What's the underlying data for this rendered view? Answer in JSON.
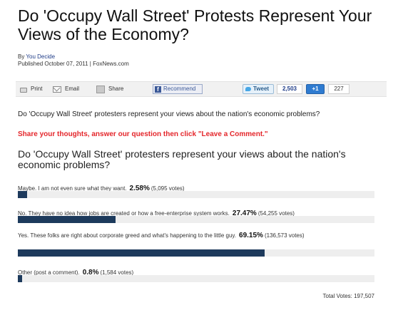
{
  "article": {
    "title": "Do 'Occupy Wall Street' Protests Represent Your Views of the Economy?",
    "byline_prefix": "By ",
    "author": "You Decide",
    "published": "Published October 07, 2011 | FoxNews.com"
  },
  "toolbar": {
    "print_label": "Print",
    "email_label": "Email",
    "share_label": "Share",
    "recommend_label": "Recommend",
    "tweet_label": "Tweet",
    "tweet_count": "2,503",
    "gplus_label": "+1",
    "gplus_count": "227"
  },
  "intro_question": "Do 'Occupy Wall Street' protesters represent your views about the nation's economic problems?",
  "call_to_action": "Share your thoughts, answer our question then click \"Leave a Comment.\"",
  "poll": {
    "question": "Do 'Occupy Wall Street' protesters represent your views about the nation's economic problems?",
    "options": [
      {
        "text": "Maybe. I am not even sure what they want.",
        "percent": "2.58%",
        "votes": "(5,095 votes)",
        "fraction": 0.0258
      },
      {
        "text": "No. They have no idea how jobs are created or how a free-enterprise system works.",
        "percent": "27.47%",
        "votes": "(54,255 votes)",
        "fraction": 0.2747
      },
      {
        "text": "Yes. These folks are right about corporate greed and what's happening to the little guy.",
        "percent": "69.15%",
        "votes": "(136,573 votes)",
        "fraction": 0.6915
      },
      {
        "text": "Other (post a comment).",
        "percent": "0.8%",
        "votes": "(1,584 votes)",
        "fraction": 0.008
      }
    ],
    "total_votes": "Total Votes: 197,507",
    "bar_color": "#1d3a5c"
  }
}
